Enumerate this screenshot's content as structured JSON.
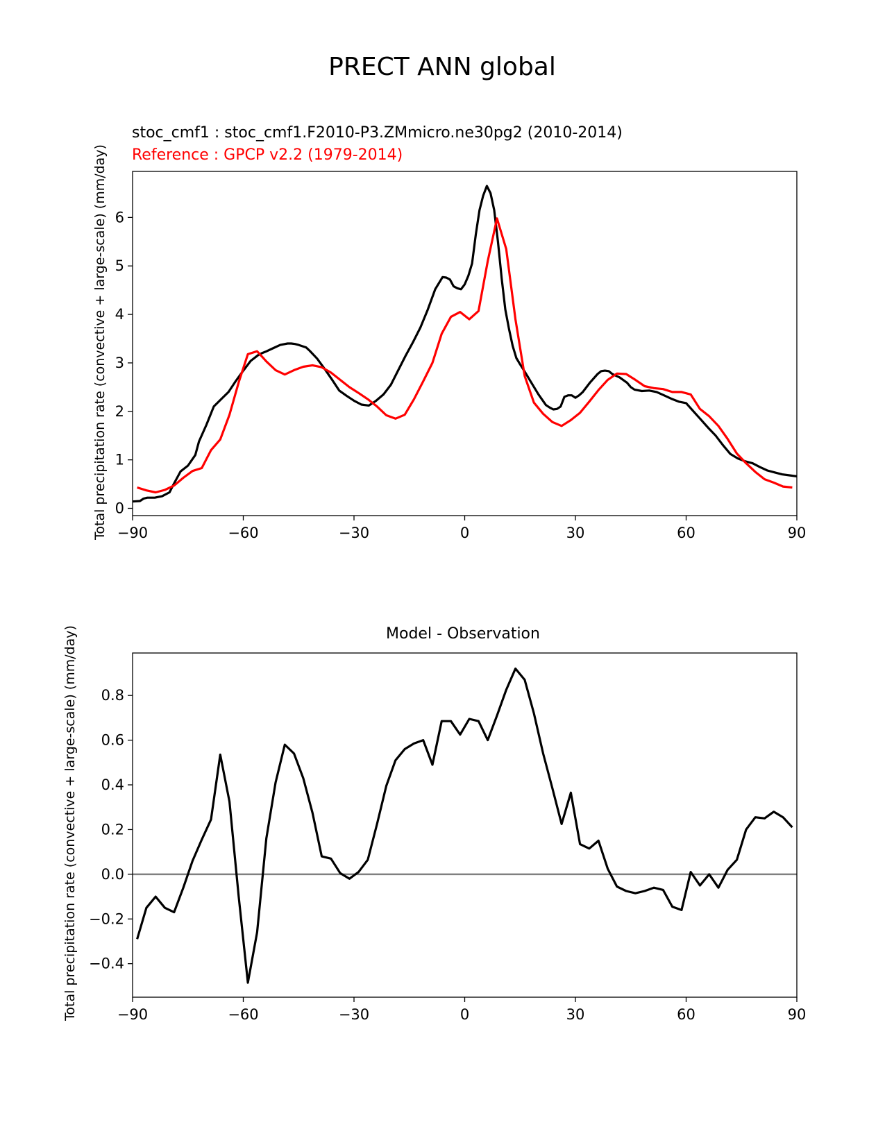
{
  "suptitle": "PRECT ANN global",
  "chart_data": [
    {
      "type": "line",
      "test_label": "stoc_cmf1 : stoc_cmf1.F2010-P3.ZMmicro.ne30pg2 (2010-2014)",
      "ref_label": "Reference : GPCP v2.2 (1979-2014)",
      "title": "",
      "xlabel": "",
      "ylabel": "Total precipitation rate (convective + large-scale) (mm/day)",
      "xlim": [
        -90,
        90
      ],
      "ylim": [
        -0.15,
        6.95
      ],
      "xticks": [
        -90,
        -60,
        -30,
        0,
        30,
        60,
        90
      ],
      "xtick_labels": [
        "−90",
        "−60",
        "−30",
        "0",
        "30",
        "60",
        "90"
      ],
      "yticks": [
        0,
        1,
        2,
        3,
        4,
        5,
        6
      ],
      "ytick_labels": [
        "0",
        "1",
        "2",
        "3",
        "4",
        "5",
        "6"
      ],
      "series": [
        {
          "color": "#000000",
          "x": [
            -90,
            -88,
            -87,
            -86,
            -84,
            -82,
            -80,
            -79,
            -77,
            -75,
            -73,
            -72,
            -70,
            -68,
            -66,
            -64,
            -62,
            -60,
            -58,
            -56,
            -55,
            -54,
            -52,
            -50,
            -48,
            -47,
            -46,
            -45,
            -43,
            -42,
            -40,
            -38,
            -36,
            -34,
            -32,
            -30,
            -28,
            -26,
            -24,
            -22,
            -20,
            -18,
            -16,
            -14,
            -12,
            -10,
            -8,
            -6,
            -5,
            -4,
            -3,
            -2,
            -1,
            0,
            1,
            2,
            3,
            4,
            5,
            6,
            7,
            8,
            9,
            10,
            11,
            12,
            13,
            14,
            15,
            16,
            18,
            20,
            22,
            23,
            24,
            25,
            26,
            27,
            28,
            29,
            30,
            31,
            32,
            34,
            36,
            37,
            38,
            39,
            40,
            42,
            44,
            45,
            46,
            48,
            50,
            52,
            54,
            56,
            58,
            60,
            62,
            64,
            66,
            68,
            70,
            72,
            74,
            76,
            78,
            80,
            82,
            84,
            86,
            88,
            90
          ],
          "y": [
            0.14,
            0.15,
            0.2,
            0.22,
            0.22,
            0.25,
            0.33,
            0.48,
            0.76,
            0.88,
            1.1,
            1.38,
            1.72,
            2.1,
            2.25,
            2.4,
            2.63,
            2.84,
            3.04,
            3.16,
            3.2,
            3.23,
            3.3,
            3.37,
            3.4,
            3.4,
            3.39,
            3.37,
            3.32,
            3.25,
            3.09,
            2.88,
            2.66,
            2.43,
            2.32,
            2.22,
            2.14,
            2.12,
            2.22,
            2.35,
            2.55,
            2.85,
            3.15,
            3.43,
            3.73,
            4.1,
            4.52,
            4.77,
            4.76,
            4.72,
            4.58,
            4.54,
            4.52,
            4.62,
            4.8,
            5.05,
            5.65,
            6.15,
            6.45,
            6.65,
            6.5,
            6.15,
            5.5,
            4.75,
            4.1,
            3.7,
            3.35,
            3.1,
            2.97,
            2.85,
            2.6,
            2.35,
            2.13,
            2.08,
            2.04,
            2.05,
            2.1,
            2.3,
            2.33,
            2.33,
            2.28,
            2.33,
            2.4,
            2.6,
            2.77,
            2.83,
            2.84,
            2.83,
            2.77,
            2.7,
            2.59,
            2.5,
            2.45,
            2.42,
            2.43,
            2.4,
            2.33,
            2.26,
            2.2,
            2.17,
            2.0,
            1.83,
            1.66,
            1.5,
            1.3,
            1.12,
            1.03,
            0.97,
            0.93,
            0.85,
            0.78,
            0.74,
            0.7,
            0.68,
            0.66
          ]
        },
        {
          "color": "#ff0000",
          "x": [
            -88.75,
            -86.25,
            -83.75,
            -81.25,
            -78.75,
            -76.25,
            -73.75,
            -71.25,
            -68.75,
            -66.25,
            -63.75,
            -61.25,
            -58.75,
            -56.25,
            -53.75,
            -51.25,
            -48.75,
            -46.25,
            -43.75,
            -41.25,
            -38.75,
            -36.25,
            -33.75,
            -31.25,
            -28.75,
            -26.25,
            -23.75,
            -21.25,
            -18.75,
            -16.25,
            -13.75,
            -11.25,
            -8.75,
            -6.25,
            -3.75,
            -1.25,
            1.25,
            3.75,
            6.25,
            8.75,
            11.25,
            13.75,
            16.25,
            18.75,
            21.25,
            23.75,
            26.25,
            28.75,
            31.25,
            33.75,
            36.25,
            38.75,
            41.25,
            43.75,
            46.25,
            48.75,
            51.25,
            53.75,
            56.25,
            58.75,
            61.25,
            63.75,
            66.25,
            68.75,
            71.25,
            73.75,
            76.25,
            78.75,
            81.25,
            83.75,
            86.25,
            88.75
          ],
          "y": [
            0.43,
            0.37,
            0.33,
            0.38,
            0.47,
            0.63,
            0.77,
            0.83,
            1.2,
            1.42,
            1.93,
            2.6,
            3.18,
            3.24,
            3.03,
            2.85,
            2.76,
            2.85,
            2.92,
            2.95,
            2.91,
            2.8,
            2.65,
            2.5,
            2.38,
            2.25,
            2.1,
            1.92,
            1.85,
            1.93,
            2.25,
            2.62,
            3.0,
            3.6,
            3.95,
            4.05,
            3.9,
            4.07,
            5.1,
            5.98,
            5.35,
            3.9,
            2.73,
            2.18,
            1.95,
            1.78,
            1.7,
            1.82,
            1.97,
            2.2,
            2.44,
            2.65,
            2.78,
            2.77,
            2.65,
            2.52,
            2.48,
            2.46,
            2.4,
            2.4,
            2.35,
            2.05,
            1.9,
            1.7,
            1.43,
            1.13,
            0.93,
            0.75,
            0.6,
            0.53,
            0.45,
            0.43
          ]
        }
      ]
    },
    {
      "type": "line",
      "title": "Model - Observation",
      "xlabel": "",
      "ylabel": "Total precipitation rate (convective + large-scale) (mm/day)",
      "xlim": [
        -90,
        90
      ],
      "ylim": [
        -0.55,
        0.99
      ],
      "xticks": [
        -90,
        -60,
        -30,
        0,
        30,
        60,
        90
      ],
      "xtick_labels": [
        "−90",
        "−60",
        "−30",
        "0",
        "30",
        "60",
        "90"
      ],
      "yticks": [
        -0.4,
        -0.2,
        0.0,
        0.2,
        0.4,
        0.6,
        0.8
      ],
      "ytick_labels": [
        "−0.4",
        "−0.2",
        "0.0",
        "0.2",
        "0.4",
        "0.6",
        "0.8"
      ],
      "zero_line_color": "#808080",
      "series": [
        {
          "color": "#000000",
          "x": [
            -88.75,
            -86.25,
            -83.75,
            -81.25,
            -78.75,
            -76.25,
            -73.75,
            -71.25,
            -68.75,
            -66.25,
            -63.75,
            -61.25,
            -58.75,
            -56.25,
            -53.75,
            -51.25,
            -48.75,
            -46.25,
            -43.75,
            -41.25,
            -38.75,
            -36.25,
            -33.75,
            -31.25,
            -28.75,
            -26.25,
            -23.75,
            -21.25,
            -18.75,
            -16.25,
            -13.75,
            -11.25,
            -8.75,
            -6.25,
            -3.75,
            -1.25,
            1.25,
            3.75,
            6.25,
            8.75,
            11.25,
            13.75,
            16.25,
            18.75,
            21.25,
            23.75,
            26.25,
            28.75,
            31.25,
            33.75,
            36.25,
            38.75,
            41.25,
            43.75,
            46.25,
            48.75,
            51.25,
            53.75,
            56.25,
            58.75,
            61.25,
            63.75,
            66.25,
            68.75,
            71.25,
            73.75,
            76.25,
            78.75,
            81.25,
            83.75,
            86.25,
            88.75
          ],
          "y": [
            -0.29,
            -0.15,
            -0.1,
            -0.15,
            -0.17,
            -0.06,
            0.06,
            0.155,
            0.245,
            0.535,
            0.325,
            -0.1,
            -0.485,
            -0.26,
            0.16,
            0.41,
            0.58,
            0.54,
            0.43,
            0.275,
            0.08,
            0.07,
            0.005,
            -0.02,
            0.01,
            0.065,
            0.225,
            0.395,
            0.51,
            0.56,
            0.585,
            0.6,
            0.49,
            0.685,
            0.685,
            0.625,
            0.695,
            0.685,
            0.6,
            0.71,
            0.825,
            0.92,
            0.87,
            0.72,
            0.54,
            0.385,
            0.225,
            0.365,
            0.135,
            0.115,
            0.15,
            0.025,
            -0.055,
            -0.075,
            -0.085,
            -0.075,
            -0.06,
            -0.07,
            -0.145,
            -0.16,
            0.01,
            -0.05,
            0.0,
            -0.06,
            0.02,
            0.065,
            0.2,
            0.255,
            0.25,
            0.28,
            0.255,
            0.21
          ]
        }
      ]
    }
  ]
}
